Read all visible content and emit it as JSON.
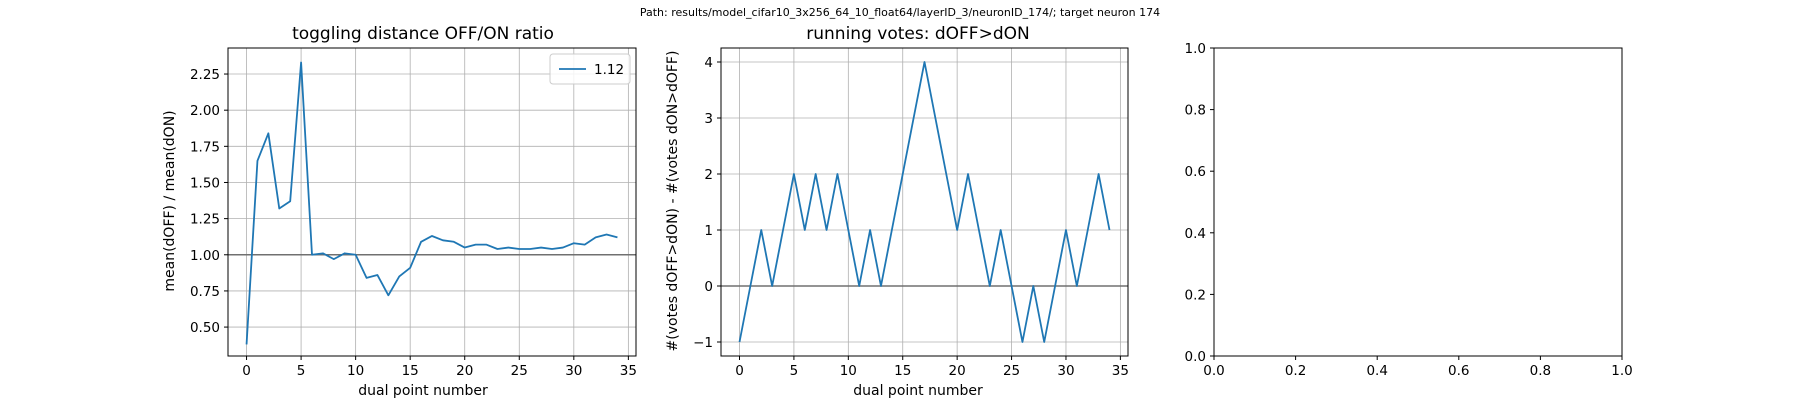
{
  "suptitle": "Path: results/model_cifar10_3x256_64_10_float64/layerID_3/neuronID_174/; target neuron 174",
  "chart_data": [
    {
      "type": "line",
      "title": "toggling distance OFF/ON ratio",
      "xlabel": "dual point number",
      "ylabel": "mean(dOFF) / mean(dON)",
      "xlim": [
        -1.7,
        35.7
      ],
      "ylim": [
        0.3,
        2.43
      ],
      "xticks": [
        0,
        5,
        10,
        15,
        20,
        25,
        30,
        35
      ],
      "yticks": [
        0.5,
        0.75,
        1.0,
        1.25,
        1.5,
        1.75,
        2.0,
        2.25
      ],
      "ytick_labels": [
        "0.50",
        "0.75",
        "1.00",
        "1.25",
        "1.50",
        "1.75",
        "2.00",
        "2.25"
      ],
      "grid": true,
      "hline": 1.0,
      "legend_position": "upper right",
      "series": [
        {
          "name": "1.12",
          "color": "#1f77b4",
          "x": [
            0,
            1,
            2,
            3,
            4,
            5,
            6,
            7,
            8,
            9,
            10,
            11,
            12,
            13,
            14,
            15,
            16,
            17,
            18,
            19,
            20,
            21,
            22,
            23,
            24,
            25,
            26,
            27,
            28,
            29,
            30,
            31,
            32,
            33,
            34
          ],
          "y": [
            0.38,
            1.65,
            1.84,
            1.32,
            1.37,
            2.33,
            1.0,
            1.01,
            0.97,
            1.01,
            1.0,
            0.84,
            0.86,
            0.72,
            0.85,
            0.91,
            1.09,
            1.13,
            1.1,
            1.09,
            1.05,
            1.07,
            1.07,
            1.04,
            1.05,
            1.04,
            1.04,
            1.05,
            1.04,
            1.05,
            1.08,
            1.07,
            1.12,
            1.14,
            1.12
          ]
        }
      ]
    },
    {
      "type": "line",
      "title": "running votes: dOFF>dON",
      "xlabel": "dual point number",
      "ylabel": "#(votes dOFF>dON) - #(votes dON>dOFF)",
      "xlim": [
        -1.7,
        35.7
      ],
      "ylim": [
        -1.25,
        4.25
      ],
      "xticks": [
        0,
        5,
        10,
        15,
        20,
        25,
        30,
        35
      ],
      "yticks": [
        -1,
        0,
        1,
        2,
        3,
        4
      ],
      "ytick_labels": [
        "−1",
        "0",
        "1",
        "2",
        "3",
        "4"
      ],
      "grid": true,
      "hline": 0,
      "series": [
        {
          "color": "#1f77b4",
          "x": [
            0,
            1,
            2,
            3,
            4,
            5,
            6,
            7,
            8,
            9,
            10,
            11,
            12,
            13,
            14,
            15,
            16,
            17,
            18,
            19,
            20,
            21,
            22,
            23,
            24,
            25,
            26,
            27,
            28,
            29,
            30,
            31,
            32,
            33,
            34
          ],
          "y": [
            -1,
            0,
            1,
            0,
            1,
            2,
            1,
            2,
            1,
            2,
            1,
            0,
            1,
            0,
            1,
            2,
            3,
            4,
            3,
            2,
            1,
            2,
            1,
            0,
            1,
            0,
            -1,
            0,
            -1,
            0,
            1,
            0,
            1,
            2,
            1
          ]
        }
      ]
    },
    {
      "type": "line",
      "title": "",
      "xlim": [
        0,
        1
      ],
      "ylim": [
        0,
        1
      ],
      "xticks": [
        0,
        0.2,
        0.4,
        0.6,
        0.8,
        1.0
      ],
      "yticks": [
        0,
        0.2,
        0.4,
        0.6,
        0.8,
        1.0
      ],
      "xtick_labels": [
        "0.0",
        "0.2",
        "0.4",
        "0.6",
        "0.8",
        "1.0"
      ],
      "ytick_labels": [
        "0.0",
        "0.2",
        "0.4",
        "0.6",
        "0.8",
        "1.0"
      ],
      "grid": false,
      "series": []
    }
  ]
}
